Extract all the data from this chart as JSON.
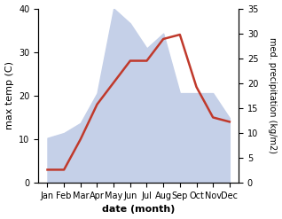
{
  "months": [
    "Jan",
    "Feb",
    "Mar",
    "Apr",
    "May",
    "Jun",
    "Jul",
    "Aug",
    "Sep",
    "Oct",
    "Nov",
    "Dec"
  ],
  "temperature": [
    3,
    3,
    10,
    18,
    23,
    28,
    28,
    33,
    34,
    22,
    15,
    14
  ],
  "precipitation": [
    9,
    10,
    12,
    18,
    35,
    32,
    27,
    30,
    18,
    18,
    18,
    13
  ],
  "temp_color": "#c0392b",
  "precip_fill_color": "#c5d0e8",
  "title": "",
  "xlabel": "date (month)",
  "ylabel_left": "max temp (C)",
  "ylabel_right": "med. precipitation (kg/m2)",
  "ylim_left": [
    0,
    40
  ],
  "ylim_right": [
    0,
    35
  ],
  "yticks_left": [
    0,
    10,
    20,
    30,
    40
  ],
  "yticks_right": [
    0,
    5,
    10,
    15,
    20,
    25,
    30,
    35
  ],
  "background_color": "#ffffff",
  "line_width": 1.8
}
